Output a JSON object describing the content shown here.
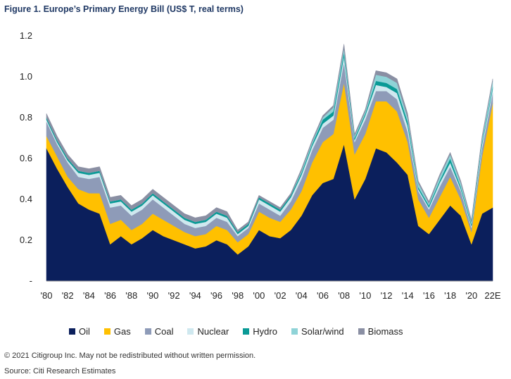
{
  "title": "Figure 1. Europe’s Primary Energy Bill (US$ T, real terms)",
  "copyright": "© 2021 Citigroup Inc. May not be redistributed without written permission.",
  "source": "Source: Citi Research Estimates",
  "chart_data": {
    "type": "area",
    "stacked": true,
    "title": "Figure 1. Europe’s Primary Energy Bill (US$ T, real terms)",
    "ylim": [
      0,
      1.2
    ],
    "yticks": [
      "-",
      "0.2",
      "0.4",
      "0.6",
      "0.8",
      "1.0",
      "1.2"
    ],
    "ytick_values": [
      0,
      0.2,
      0.4,
      0.6,
      0.8,
      1.0,
      1.2
    ],
    "xtick_labels": [
      "'80",
      "'82",
      "'84",
      "'86",
      "'88",
      "'90",
      "'92",
      "'94",
      "'96",
      "'98",
      "'00",
      "'02",
      "'04",
      "'06",
      "'08",
      "'10",
      "'12",
      "'14",
      "'16",
      "'18",
      "'20",
      "22E"
    ],
    "x": [
      1980,
      1981,
      1982,
      1983,
      1984,
      1985,
      1986,
      1987,
      1988,
      1989,
      1990,
      1991,
      1992,
      1993,
      1994,
      1995,
      1996,
      1997,
      1998,
      1999,
      2000,
      2001,
      2002,
      2003,
      2004,
      2005,
      2006,
      2007,
      2008,
      2009,
      2010,
      2011,
      2012,
      2013,
      2014,
      2015,
      2016,
      2017,
      2018,
      2019,
      2020,
      2021,
      2022
    ],
    "legend_position": "bottom",
    "series": [
      {
        "name": "Oil",
        "color": "#0b1f5c",
        "values": [
          0.65,
          0.55,
          0.46,
          0.38,
          0.35,
          0.33,
          0.18,
          0.22,
          0.18,
          0.21,
          0.25,
          0.22,
          0.2,
          0.18,
          0.16,
          0.17,
          0.2,
          0.18,
          0.13,
          0.17,
          0.25,
          0.22,
          0.21,
          0.25,
          0.32,
          0.42,
          0.48,
          0.5,
          0.67,
          0.4,
          0.5,
          0.65,
          0.63,
          0.58,
          0.52,
          0.27,
          0.23,
          0.3,
          0.37,
          0.32,
          0.18,
          0.33,
          0.36
        ]
      },
      {
        "name": "Gas",
        "color": "#ffc000",
        "values": [
          0.06,
          0.06,
          0.05,
          0.07,
          0.08,
          0.1,
          0.1,
          0.08,
          0.07,
          0.07,
          0.08,
          0.08,
          0.07,
          0.06,
          0.06,
          0.06,
          0.07,
          0.07,
          0.06,
          0.06,
          0.09,
          0.09,
          0.08,
          0.1,
          0.12,
          0.16,
          0.2,
          0.22,
          0.3,
          0.22,
          0.22,
          0.23,
          0.25,
          0.25,
          0.16,
          0.13,
          0.08,
          0.11,
          0.14,
          0.08,
          0.06,
          0.28,
          0.51
        ]
      },
      {
        "name": "Coal",
        "color": "#8e9bb8",
        "values": [
          0.07,
          0.06,
          0.07,
          0.06,
          0.07,
          0.08,
          0.08,
          0.07,
          0.07,
          0.07,
          0.07,
          0.06,
          0.05,
          0.04,
          0.04,
          0.04,
          0.04,
          0.04,
          0.03,
          0.03,
          0.04,
          0.04,
          0.03,
          0.04,
          0.06,
          0.06,
          0.07,
          0.07,
          0.1,
          0.06,
          0.07,
          0.05,
          0.05,
          0.06,
          0.05,
          0.04,
          0.04,
          0.05,
          0.05,
          0.04,
          0.02,
          0.04,
          0.05
        ]
      },
      {
        "name": "Nuclear",
        "color": "#cfe8ef",
        "values": [
          0.01,
          0.01,
          0.01,
          0.02,
          0.02,
          0.02,
          0.02,
          0.02,
          0.02,
          0.02,
          0.02,
          0.02,
          0.02,
          0.02,
          0.02,
          0.02,
          0.02,
          0.02,
          0.01,
          0.01,
          0.02,
          0.02,
          0.02,
          0.02,
          0.02,
          0.02,
          0.02,
          0.02,
          0.03,
          0.01,
          0.02,
          0.03,
          0.02,
          0.03,
          0.03,
          0.01,
          0.01,
          0.02,
          0.02,
          0.01,
          0.01,
          0.02,
          0.02
        ]
      },
      {
        "name": "Hydro",
        "color": "#0a9a96",
        "values": [
          0.01,
          0.01,
          0.01,
          0.01,
          0.01,
          0.01,
          0.01,
          0.01,
          0.01,
          0.01,
          0.01,
          0.01,
          0.01,
          0.01,
          0.01,
          0.01,
          0.01,
          0.01,
          0.01,
          0.01,
          0.01,
          0.01,
          0.01,
          0.01,
          0.01,
          0.01,
          0.02,
          0.02,
          0.02,
          0.01,
          0.01,
          0.02,
          0.02,
          0.02,
          0.02,
          0.01,
          0.01,
          0.01,
          0.02,
          0.01,
          0.01,
          0.01,
          0.01
        ]
      },
      {
        "name": "Solar/wind",
        "color": "#8fd3d7",
        "values": [
          0.0,
          0.0,
          0.0,
          0.0,
          0.0,
          0.0,
          0.0,
          0.0,
          0.0,
          0.0,
          0.0,
          0.0,
          0.0,
          0.0,
          0.0,
          0.0,
          0.0,
          0.0,
          0.0,
          0.0,
          0.0,
          0.0,
          0.0,
          0.0,
          0.01,
          0.01,
          0.01,
          0.02,
          0.02,
          0.01,
          0.01,
          0.03,
          0.03,
          0.03,
          0.02,
          0.02,
          0.01,
          0.02,
          0.02,
          0.02,
          0.01,
          0.02,
          0.03
        ]
      },
      {
        "name": "Biomass",
        "color": "#8a8fa3",
        "values": [
          0.02,
          0.02,
          0.02,
          0.02,
          0.02,
          0.02,
          0.02,
          0.02,
          0.02,
          0.02,
          0.02,
          0.02,
          0.02,
          0.02,
          0.02,
          0.02,
          0.02,
          0.02,
          0.01,
          0.01,
          0.01,
          0.01,
          0.01,
          0.01,
          0.01,
          0.01,
          0.01,
          0.01,
          0.02,
          0.01,
          0.01,
          0.02,
          0.02,
          0.02,
          0.02,
          0.01,
          0.01,
          0.01,
          0.01,
          0.01,
          0.01,
          0.01,
          0.01
        ]
      }
    ]
  }
}
